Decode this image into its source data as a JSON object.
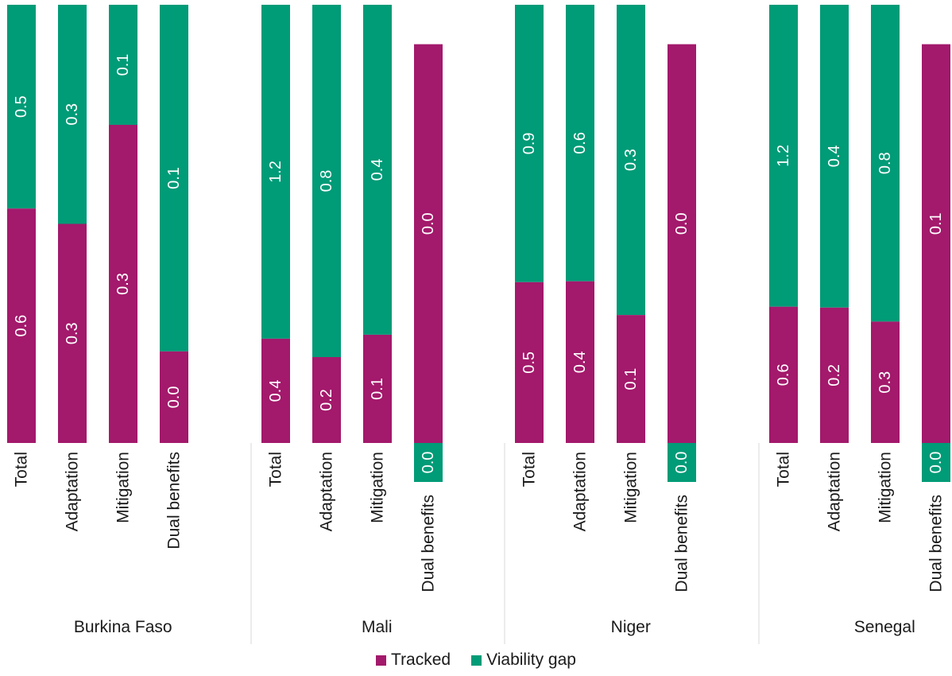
{
  "chart_data": {
    "type": "bar",
    "stacked": true,
    "orientation": "vertical",
    "percent_stacked": true,
    "groups": [
      {
        "name": "Burkina Faso",
        "bars": [
          {
            "category": "Total",
            "tracked": "0.6",
            "viability_gap": "0.5",
            "tracked_share": 0.535
          },
          {
            "category": "Adaptation",
            "tracked": "0.3",
            "viability_gap": "0.3",
            "tracked_share": 0.5
          },
          {
            "category": "Mitigation",
            "tracked": "0.3",
            "viability_gap": "0.1",
            "tracked_share": 0.726
          },
          {
            "category": "Dual benefits",
            "tracked": "0.0",
            "viability_gap": "0.1",
            "tracked_share": 0.209
          }
        ]
      },
      {
        "name": "Mali",
        "bars": [
          {
            "category": "Total",
            "tracked": "0.4",
            "viability_gap": "1.2",
            "tracked_share": 0.238
          },
          {
            "category": "Adaptation",
            "tracked": "0.2",
            "viability_gap": "0.8",
            "tracked_share": 0.196
          },
          {
            "category": "Mitigation",
            "tracked": "0.1",
            "viability_gap": "0.4",
            "tracked_share": 0.247
          },
          {
            "category": "Dual benefits",
            "tracked": "0.0",
            "viability_gap": "0.0",
            "tracked_share": 0.91
          }
        ]
      },
      {
        "name": "Niger",
        "bars": [
          {
            "category": "Total",
            "tracked": "0.5",
            "viability_gap": "0.9",
            "tracked_share": 0.367
          },
          {
            "category": "Adaptation",
            "tracked": "0.4",
            "viability_gap": "0.6",
            "tracked_share": 0.369
          },
          {
            "category": "Mitigation",
            "tracked": "0.1",
            "viability_gap": "0.3",
            "tracked_share": 0.292
          },
          {
            "category": "Dual benefits",
            "tracked": "0.0",
            "viability_gap": "0.0",
            "tracked_share": 0.91
          }
        ]
      },
      {
        "name": "Senegal",
        "bars": [
          {
            "category": "Total",
            "tracked": "0.6",
            "viability_gap": "1.2",
            "tracked_share": 0.311
          },
          {
            "category": "Adaptation",
            "tracked": "0.2",
            "viability_gap": "0.4",
            "tracked_share": 0.309
          },
          {
            "category": "Mitigation",
            "tracked": "0.3",
            "viability_gap": "0.8",
            "tracked_share": 0.277
          },
          {
            "category": "Dual benefits",
            "tracked": "0.1",
            "viability_gap": "0.0",
            "tracked_share": 0.91
          }
        ]
      }
    ],
    "series": [
      {
        "name": "Tracked",
        "color": "#a3196b"
      },
      {
        "name": "Viability gap",
        "color": "#009b77"
      }
    ],
    "legend": {
      "placement": "bottom",
      "items": [
        "Tracked",
        "Viability gap"
      ]
    },
    "grid": false
  }
}
